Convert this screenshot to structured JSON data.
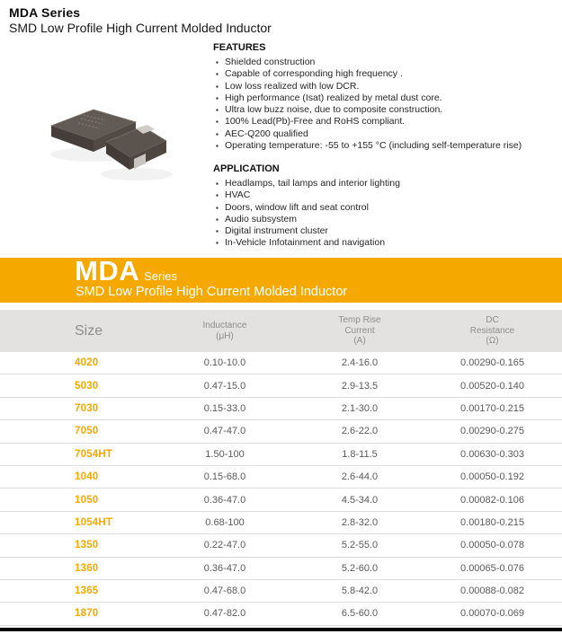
{
  "header": {
    "title": "MDA Series",
    "subtitle": "SMD Low Profile High Current Molded Inductor"
  },
  "features": {
    "heading": "FEATURES",
    "items": [
      "Shielded construction",
      "Capable of corresponding high frequency .",
      "Low loss realized with low DCR.",
      "High performance (Isat) realized by metal dust core.",
      "Ultra low buzz noise, due to composite construction.",
      "100% Lead(Pb)-Free and RoHS compliant.",
      "AEC-Q200 qualified",
      "Operating temperature: -55 to +155 °C (including self-temperature rise)"
    ]
  },
  "application": {
    "heading": "APPLICATION",
    "items": [
      "Headlamps, tail lamps and interior lighting",
      "HVAC",
      "Doors, window lift and seat control",
      "Audio subsystem",
      "Digital instrument cluster",
      "In-Vehicle Infotainment and navigation"
    ]
  },
  "photo": {
    "description": "two dark molded SMD inductor components"
  },
  "banner": {
    "series_name": "MDA",
    "series_suffix": "Series",
    "subtitle": "SMD Low Profile High Current Molded Inductor",
    "bg_color": "#F5A800",
    "text_color": "#FFFFFF"
  },
  "table": {
    "columns": [
      {
        "id": "size",
        "lines": [
          "Size"
        ]
      },
      {
        "id": "inductance",
        "lines": [
          "Inductance",
          "(μH)"
        ]
      },
      {
        "id": "temp_rise_current",
        "lines": [
          "Temp Rise",
          "Current",
          "(A)"
        ]
      },
      {
        "id": "dc_resistance",
        "lines": [
          "DC",
          "Resistance",
          "(Ω)"
        ]
      }
    ],
    "rows": [
      {
        "size": "4020",
        "inductance": "0.10-10.0",
        "temp_rise_current": "2.4-16.0",
        "dc_resistance": "0.00290-0.165"
      },
      {
        "size": "5030",
        "inductance": "0.47-15.0",
        "temp_rise_current": "2.9-13.5",
        "dc_resistance": "0.00520-0.140"
      },
      {
        "size": "7030",
        "inductance": "0.15-33.0",
        "temp_rise_current": "2.1-30.0",
        "dc_resistance": "0.00170-0.215"
      },
      {
        "size": "7050",
        "inductance": "0.47-47.0",
        "temp_rise_current": "2.6-22.0",
        "dc_resistance": "0.00290-0.275"
      },
      {
        "size": "7054HT",
        "inductance": "1.50-100",
        "temp_rise_current": "1.8-11.5",
        "dc_resistance": "0.00630-0.303"
      },
      {
        "size": "1040",
        "inductance": "0.15-68.0",
        "temp_rise_current": "2.6-44.0",
        "dc_resistance": "0.00050-0.192"
      },
      {
        "size": "1050",
        "inductance": "0.36-47.0",
        "temp_rise_current": "4.5-34.0",
        "dc_resistance": "0.00082-0.106"
      },
      {
        "size": "1054HT",
        "inductance": "0.68-100",
        "temp_rise_current": "2.8-32.0",
        "dc_resistance": "0.00180-0.215"
      },
      {
        "size": "1350",
        "inductance": "0.22-47.0",
        "temp_rise_current": "5.2-55.0",
        "dc_resistance": "0.00050-0.078"
      },
      {
        "size": "1360",
        "inductance": "0.36-47.0",
        "temp_rise_current": "5.2-60.0",
        "dc_resistance": "0.00065-0.076"
      },
      {
        "size": "1365",
        "inductance": "0.47-68.0",
        "temp_rise_current": "5.8-42.0",
        "dc_resistance": "0.00088-0.082"
      },
      {
        "size": "1870",
        "inductance": "0.47-82.0",
        "temp_rise_current": "6.5-60.0",
        "dc_resistance": "0.00070-0.069"
      }
    ]
  },
  "colors": {
    "accent_orange": "#F5A800",
    "table_header_bg": "#E3E2E1",
    "table_header_text": "#8D8D8D",
    "cell_text": "#595959",
    "row_divider": "#DCDCDC",
    "bottom_bar": "#050505"
  }
}
